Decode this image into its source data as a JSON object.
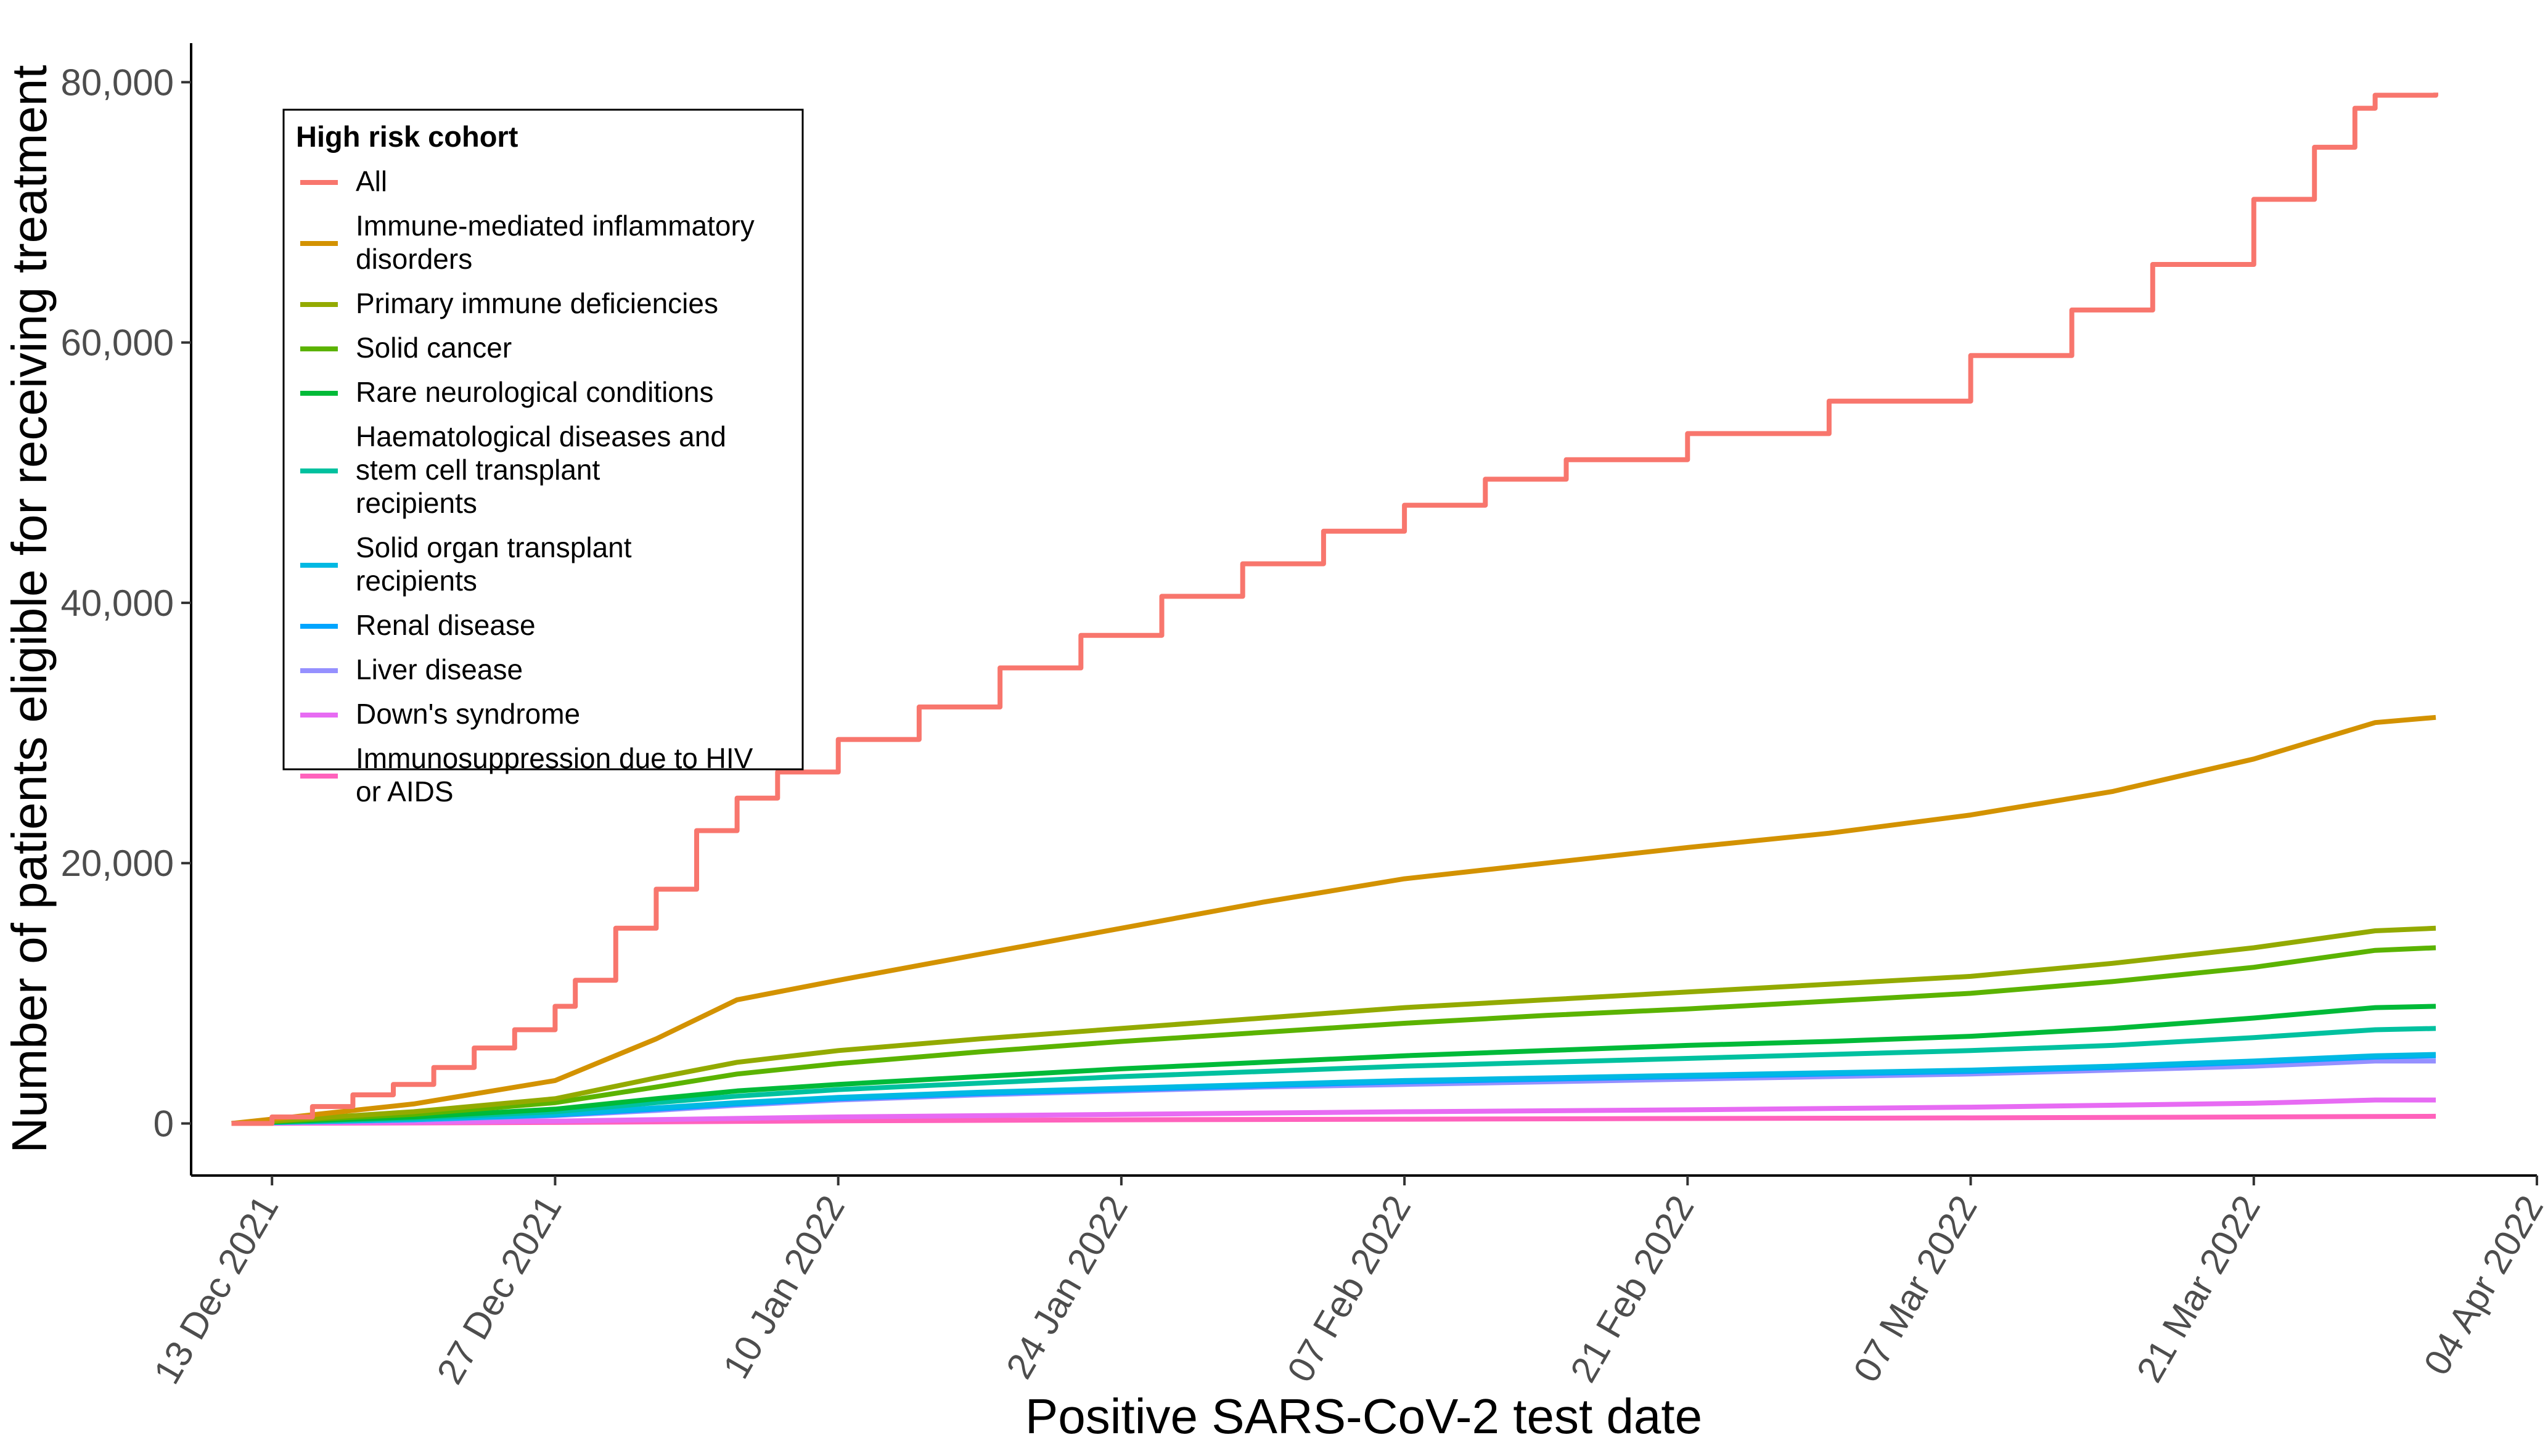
{
  "chart_data": {
    "type": "line",
    "title": "",
    "xlabel": "Positive SARS-CoV-2 test date",
    "ylabel": "Number of patients eligible for receiving treatment",
    "x_start": "2021-12-11",
    "x_end": "2022-03-30",
    "xlim": [
      "2021-12-09",
      "2022-04-04"
    ],
    "ylim": [
      -4000,
      83000
    ],
    "x_ticks": [
      {
        "date": "2021-12-13",
        "label": "13 Dec 2021"
      },
      {
        "date": "2021-12-27",
        "label": "27 Dec 2021"
      },
      {
        "date": "2022-01-10",
        "label": "10 Jan 2022"
      },
      {
        "date": "2022-01-24",
        "label": "24 Jan 2022"
      },
      {
        "date": "2022-02-07",
        "label": "07 Feb 2022"
      },
      {
        "date": "2022-02-21",
        "label": "21 Feb 2022"
      },
      {
        "date": "2022-03-07",
        "label": "07 Mar 2022"
      },
      {
        "date": "2022-03-21",
        "label": "21 Mar 2022"
      },
      {
        "date": "2022-04-04",
        "label": "04 Apr 2022"
      }
    ],
    "y_ticks": [
      {
        "value": 0,
        "label": "0"
      },
      {
        "value": 20000,
        "label": "20,000"
      },
      {
        "value": 40000,
        "label": "40,000"
      },
      {
        "value": 60000,
        "label": "60,000"
      },
      {
        "value": 80000,
        "label": "80,000"
      }
    ],
    "grid": false,
    "legend": {
      "title": "High risk cohort",
      "position": "top-left"
    },
    "series": [
      {
        "name": "All",
        "color": "#F8766D",
        "step": true,
        "points": [
          [
            "2021-12-11",
            0
          ],
          [
            "2021-12-13",
            500
          ],
          [
            "2021-12-15",
            1300
          ],
          [
            "2021-12-17",
            2200
          ],
          [
            "2021-12-19",
            3000
          ],
          [
            "2021-12-21",
            4300
          ],
          [
            "2021-12-23",
            5800
          ],
          [
            "2021-12-25",
            7200
          ],
          [
            "2021-12-27",
            9000
          ],
          [
            "2021-12-28",
            11000
          ],
          [
            "2021-12-30",
            15000
          ],
          [
            "2022-01-01",
            18000
          ],
          [
            "2022-01-03",
            22500
          ],
          [
            "2022-01-05",
            25000
          ],
          [
            "2022-01-07",
            27000
          ],
          [
            "2022-01-10",
            29500
          ],
          [
            "2022-01-14",
            32000
          ],
          [
            "2022-01-18",
            35000
          ],
          [
            "2022-01-22",
            37500
          ],
          [
            "2022-01-26",
            40500
          ],
          [
            "2022-01-30",
            43000
          ],
          [
            "2022-02-03",
            45500
          ],
          [
            "2022-02-07",
            47500
          ],
          [
            "2022-02-11",
            49500
          ],
          [
            "2022-02-15",
            51000
          ],
          [
            "2022-02-21",
            53000
          ],
          [
            "2022-02-28",
            55500
          ],
          [
            "2022-03-07",
            59000
          ],
          [
            "2022-03-12",
            62500
          ],
          [
            "2022-03-16",
            66000
          ],
          [
            "2022-03-21",
            71000
          ],
          [
            "2022-03-24",
            75000
          ],
          [
            "2022-03-26",
            78000
          ],
          [
            "2022-03-27",
            79000
          ],
          [
            "2022-03-30",
            79200
          ]
        ]
      },
      {
        "name": "Immune-mediated inflammatory disorders",
        "color": "#D39200",
        "step": false,
        "points": [
          [
            "2021-12-11",
            0
          ],
          [
            "2021-12-20",
            1500
          ],
          [
            "2021-12-27",
            3300
          ],
          [
            "2022-01-01",
            6500
          ],
          [
            "2022-01-05",
            9500
          ],
          [
            "2022-01-10",
            11000
          ],
          [
            "2022-01-17",
            13000
          ],
          [
            "2022-01-24",
            15000
          ],
          [
            "2022-01-31",
            17000
          ],
          [
            "2022-02-07",
            18800
          ],
          [
            "2022-02-14",
            20000
          ],
          [
            "2022-02-21",
            21200
          ],
          [
            "2022-02-28",
            22300
          ],
          [
            "2022-03-07",
            23700
          ],
          [
            "2022-03-14",
            25500
          ],
          [
            "2022-03-21",
            28000
          ],
          [
            "2022-03-27",
            30800
          ],
          [
            "2022-03-30",
            31200
          ]
        ]
      },
      {
        "name": "Primary immune deficiencies",
        "color": "#93AA00",
        "step": false,
        "points": [
          [
            "2021-12-11",
            0
          ],
          [
            "2021-12-20",
            900
          ],
          [
            "2021-12-27",
            1900
          ],
          [
            "2022-01-01",
            3500
          ],
          [
            "2022-01-05",
            4700
          ],
          [
            "2022-01-10",
            5600
          ],
          [
            "2022-01-17",
            6500
          ],
          [
            "2022-01-24",
            7300
          ],
          [
            "2022-01-31",
            8100
          ],
          [
            "2022-02-07",
            8900
          ],
          [
            "2022-02-14",
            9500
          ],
          [
            "2022-02-21",
            10100
          ],
          [
            "2022-02-28",
            10700
          ],
          [
            "2022-03-07",
            11300
          ],
          [
            "2022-03-14",
            12300
          ],
          [
            "2022-03-21",
            13500
          ],
          [
            "2022-03-27",
            14800
          ],
          [
            "2022-03-30",
            15000
          ]
        ]
      },
      {
        "name": "Solid cancer",
        "color": "#5BB300",
        "step": false,
        "points": [
          [
            "2021-12-11",
            0
          ],
          [
            "2021-12-20",
            700
          ],
          [
            "2021-12-27",
            1600
          ],
          [
            "2022-01-01",
            2800
          ],
          [
            "2022-01-05",
            3800
          ],
          [
            "2022-01-10",
            4600
          ],
          [
            "2022-01-17",
            5500
          ],
          [
            "2022-01-24",
            6300
          ],
          [
            "2022-01-31",
            7000
          ],
          [
            "2022-02-07",
            7700
          ],
          [
            "2022-02-14",
            8300
          ],
          [
            "2022-02-21",
            8800
          ],
          [
            "2022-02-28",
            9400
          ],
          [
            "2022-03-07",
            10000
          ],
          [
            "2022-03-14",
            10900
          ],
          [
            "2022-03-21",
            12000
          ],
          [
            "2022-03-27",
            13300
          ],
          [
            "2022-03-30",
            13500
          ]
        ]
      },
      {
        "name": "Rare neurological conditions",
        "color": "#00BA38",
        "step": false,
        "points": [
          [
            "2021-12-11",
            0
          ],
          [
            "2021-12-20",
            500
          ],
          [
            "2021-12-27",
            1100
          ],
          [
            "2022-01-01",
            1900
          ],
          [
            "2022-01-05",
            2500
          ],
          [
            "2022-01-10",
            3000
          ],
          [
            "2022-01-17",
            3600
          ],
          [
            "2022-01-24",
            4200
          ],
          [
            "2022-01-31",
            4700
          ],
          [
            "2022-02-07",
            5200
          ],
          [
            "2022-02-14",
            5600
          ],
          [
            "2022-02-21",
            6000
          ],
          [
            "2022-02-28",
            6300
          ],
          [
            "2022-03-07",
            6700
          ],
          [
            "2022-03-14",
            7300
          ],
          [
            "2022-03-21",
            8100
          ],
          [
            "2022-03-27",
            8900
          ],
          [
            "2022-03-30",
            9000
          ]
        ]
      },
      {
        "name": "Haematological diseases and stem cell transplant recipients",
        "color": "#00C19F",
        "step": false,
        "points": [
          [
            "2021-12-11",
            0
          ],
          [
            "2021-12-20",
            400
          ],
          [
            "2021-12-27",
            900
          ],
          [
            "2022-01-01",
            1600
          ],
          [
            "2022-01-05",
            2100
          ],
          [
            "2022-01-10",
            2600
          ],
          [
            "2022-01-17",
            3100
          ],
          [
            "2022-01-24",
            3600
          ],
          [
            "2022-01-31",
            4000
          ],
          [
            "2022-02-07",
            4400
          ],
          [
            "2022-02-14",
            4700
          ],
          [
            "2022-02-21",
            5000
          ],
          [
            "2022-02-28",
            5300
          ],
          [
            "2022-03-07",
            5600
          ],
          [
            "2022-03-14",
            6000
          ],
          [
            "2022-03-21",
            6600
          ],
          [
            "2022-03-27",
            7200
          ],
          [
            "2022-03-30",
            7300
          ]
        ]
      },
      {
        "name": "Solid organ transplant recipients",
        "color": "#00B9E3",
        "step": false,
        "points": [
          [
            "2021-12-11",
            0
          ],
          [
            "2021-12-20",
            300
          ],
          [
            "2021-12-27",
            700
          ],
          [
            "2022-01-01",
            1200
          ],
          [
            "2022-01-05",
            1600
          ],
          [
            "2022-01-10",
            2000
          ],
          [
            "2022-01-17",
            2400
          ],
          [
            "2022-01-24",
            2700
          ],
          [
            "2022-01-31",
            3000
          ],
          [
            "2022-02-07",
            3300
          ],
          [
            "2022-02-14",
            3500
          ],
          [
            "2022-02-21",
            3700
          ],
          [
            "2022-02-28",
            3900
          ],
          [
            "2022-03-07",
            4100
          ],
          [
            "2022-03-14",
            4400
          ],
          [
            "2022-03-21",
            4800
          ],
          [
            "2022-03-27",
            5200
          ],
          [
            "2022-03-30",
            5300
          ]
        ]
      },
      {
        "name": "Renal disease",
        "color": "#00A5FF",
        "step": false,
        "points": [
          [
            "2021-12-11",
            0
          ],
          [
            "2021-12-20",
            300
          ],
          [
            "2021-12-27",
            650
          ],
          [
            "2022-01-01",
            1100
          ],
          [
            "2022-01-05",
            1500
          ],
          [
            "2022-01-10",
            1900
          ],
          [
            "2022-01-17",
            2300
          ],
          [
            "2022-01-24",
            2600
          ],
          [
            "2022-01-31",
            2900
          ],
          [
            "2022-02-07",
            3200
          ],
          [
            "2022-02-14",
            3400
          ],
          [
            "2022-02-21",
            3600
          ],
          [
            "2022-02-28",
            3800
          ],
          [
            "2022-03-07",
            4000
          ],
          [
            "2022-03-14",
            4300
          ],
          [
            "2022-03-21",
            4700
          ],
          [
            "2022-03-27",
            5100
          ],
          [
            "2022-03-30",
            5200
          ]
        ]
      },
      {
        "name": "Liver disease",
        "color": "#9590FF",
        "step": false,
        "points": [
          [
            "2021-12-11",
            0
          ],
          [
            "2021-12-20",
            250
          ],
          [
            "2021-12-27",
            600
          ],
          [
            "2022-01-01",
            1000
          ],
          [
            "2022-01-05",
            1400
          ],
          [
            "2022-01-10",
            1800
          ],
          [
            "2022-01-17",
            2200
          ],
          [
            "2022-01-24",
            2500
          ],
          [
            "2022-01-31",
            2800
          ],
          [
            "2022-02-07",
            3000
          ],
          [
            "2022-02-14",
            3200
          ],
          [
            "2022-02-21",
            3400
          ],
          [
            "2022-02-28",
            3600
          ],
          [
            "2022-03-07",
            3800
          ],
          [
            "2022-03-14",
            4100
          ],
          [
            "2022-03-21",
            4400
          ],
          [
            "2022-03-27",
            4800
          ],
          [
            "2022-03-30",
            4800
          ]
        ]
      },
      {
        "name": "Down's syndrome",
        "color": "#E76BF3",
        "step": false,
        "points": [
          [
            "2021-12-11",
            0
          ],
          [
            "2021-12-27",
            180
          ],
          [
            "2022-01-10",
            500
          ],
          [
            "2022-01-24",
            700
          ],
          [
            "2022-02-07",
            900
          ],
          [
            "2022-02-21",
            1050
          ],
          [
            "2022-03-07",
            1250
          ],
          [
            "2022-03-21",
            1550
          ],
          [
            "2022-03-27",
            1800
          ],
          [
            "2022-03-30",
            1800
          ]
        ]
      },
      {
        "name": "Immunosuppression due to HIV or AIDS",
        "color": "#FF62BC",
        "step": false,
        "points": [
          [
            "2021-12-11",
            0
          ],
          [
            "2021-12-27",
            80
          ],
          [
            "2022-01-10",
            200
          ],
          [
            "2022-01-24",
            280
          ],
          [
            "2022-02-07",
            330
          ],
          [
            "2022-02-21",
            380
          ],
          [
            "2022-03-07",
            430
          ],
          [
            "2022-03-21",
            500
          ],
          [
            "2022-03-30",
            550
          ]
        ]
      }
    ]
  },
  "legend": {
    "title": "High risk cohort",
    "items": [
      {
        "lines": [
          "All"
        ],
        "color": "#F8766D"
      },
      {
        "lines": [
          "Immune-mediated inflammatory",
          "disorders"
        ],
        "color": "#D39200"
      },
      {
        "lines": [
          "Primary immune deficiencies"
        ],
        "color": "#93AA00"
      },
      {
        "lines": [
          "Solid cancer"
        ],
        "color": "#5BB300"
      },
      {
        "lines": [
          "Rare neurological conditions"
        ],
        "color": "#00BA38"
      },
      {
        "lines": [
          "Haematological diseases and",
          "stem cell transplant",
          "recipients"
        ],
        "color": "#00C19F"
      },
      {
        "lines": [
          "Solid organ transplant",
          "recipients"
        ],
        "color": "#00B9E3"
      },
      {
        "lines": [
          "Renal disease"
        ],
        "color": "#00A5FF"
      },
      {
        "lines": [
          "Liver disease"
        ],
        "color": "#9590FF"
      },
      {
        "lines": [
          "Down's syndrome"
        ],
        "color": "#E76BF3"
      },
      {
        "lines": [
          "Immunosuppression due to HIV",
          "or AIDS"
        ],
        "color": "#FF62BC"
      }
    ]
  }
}
